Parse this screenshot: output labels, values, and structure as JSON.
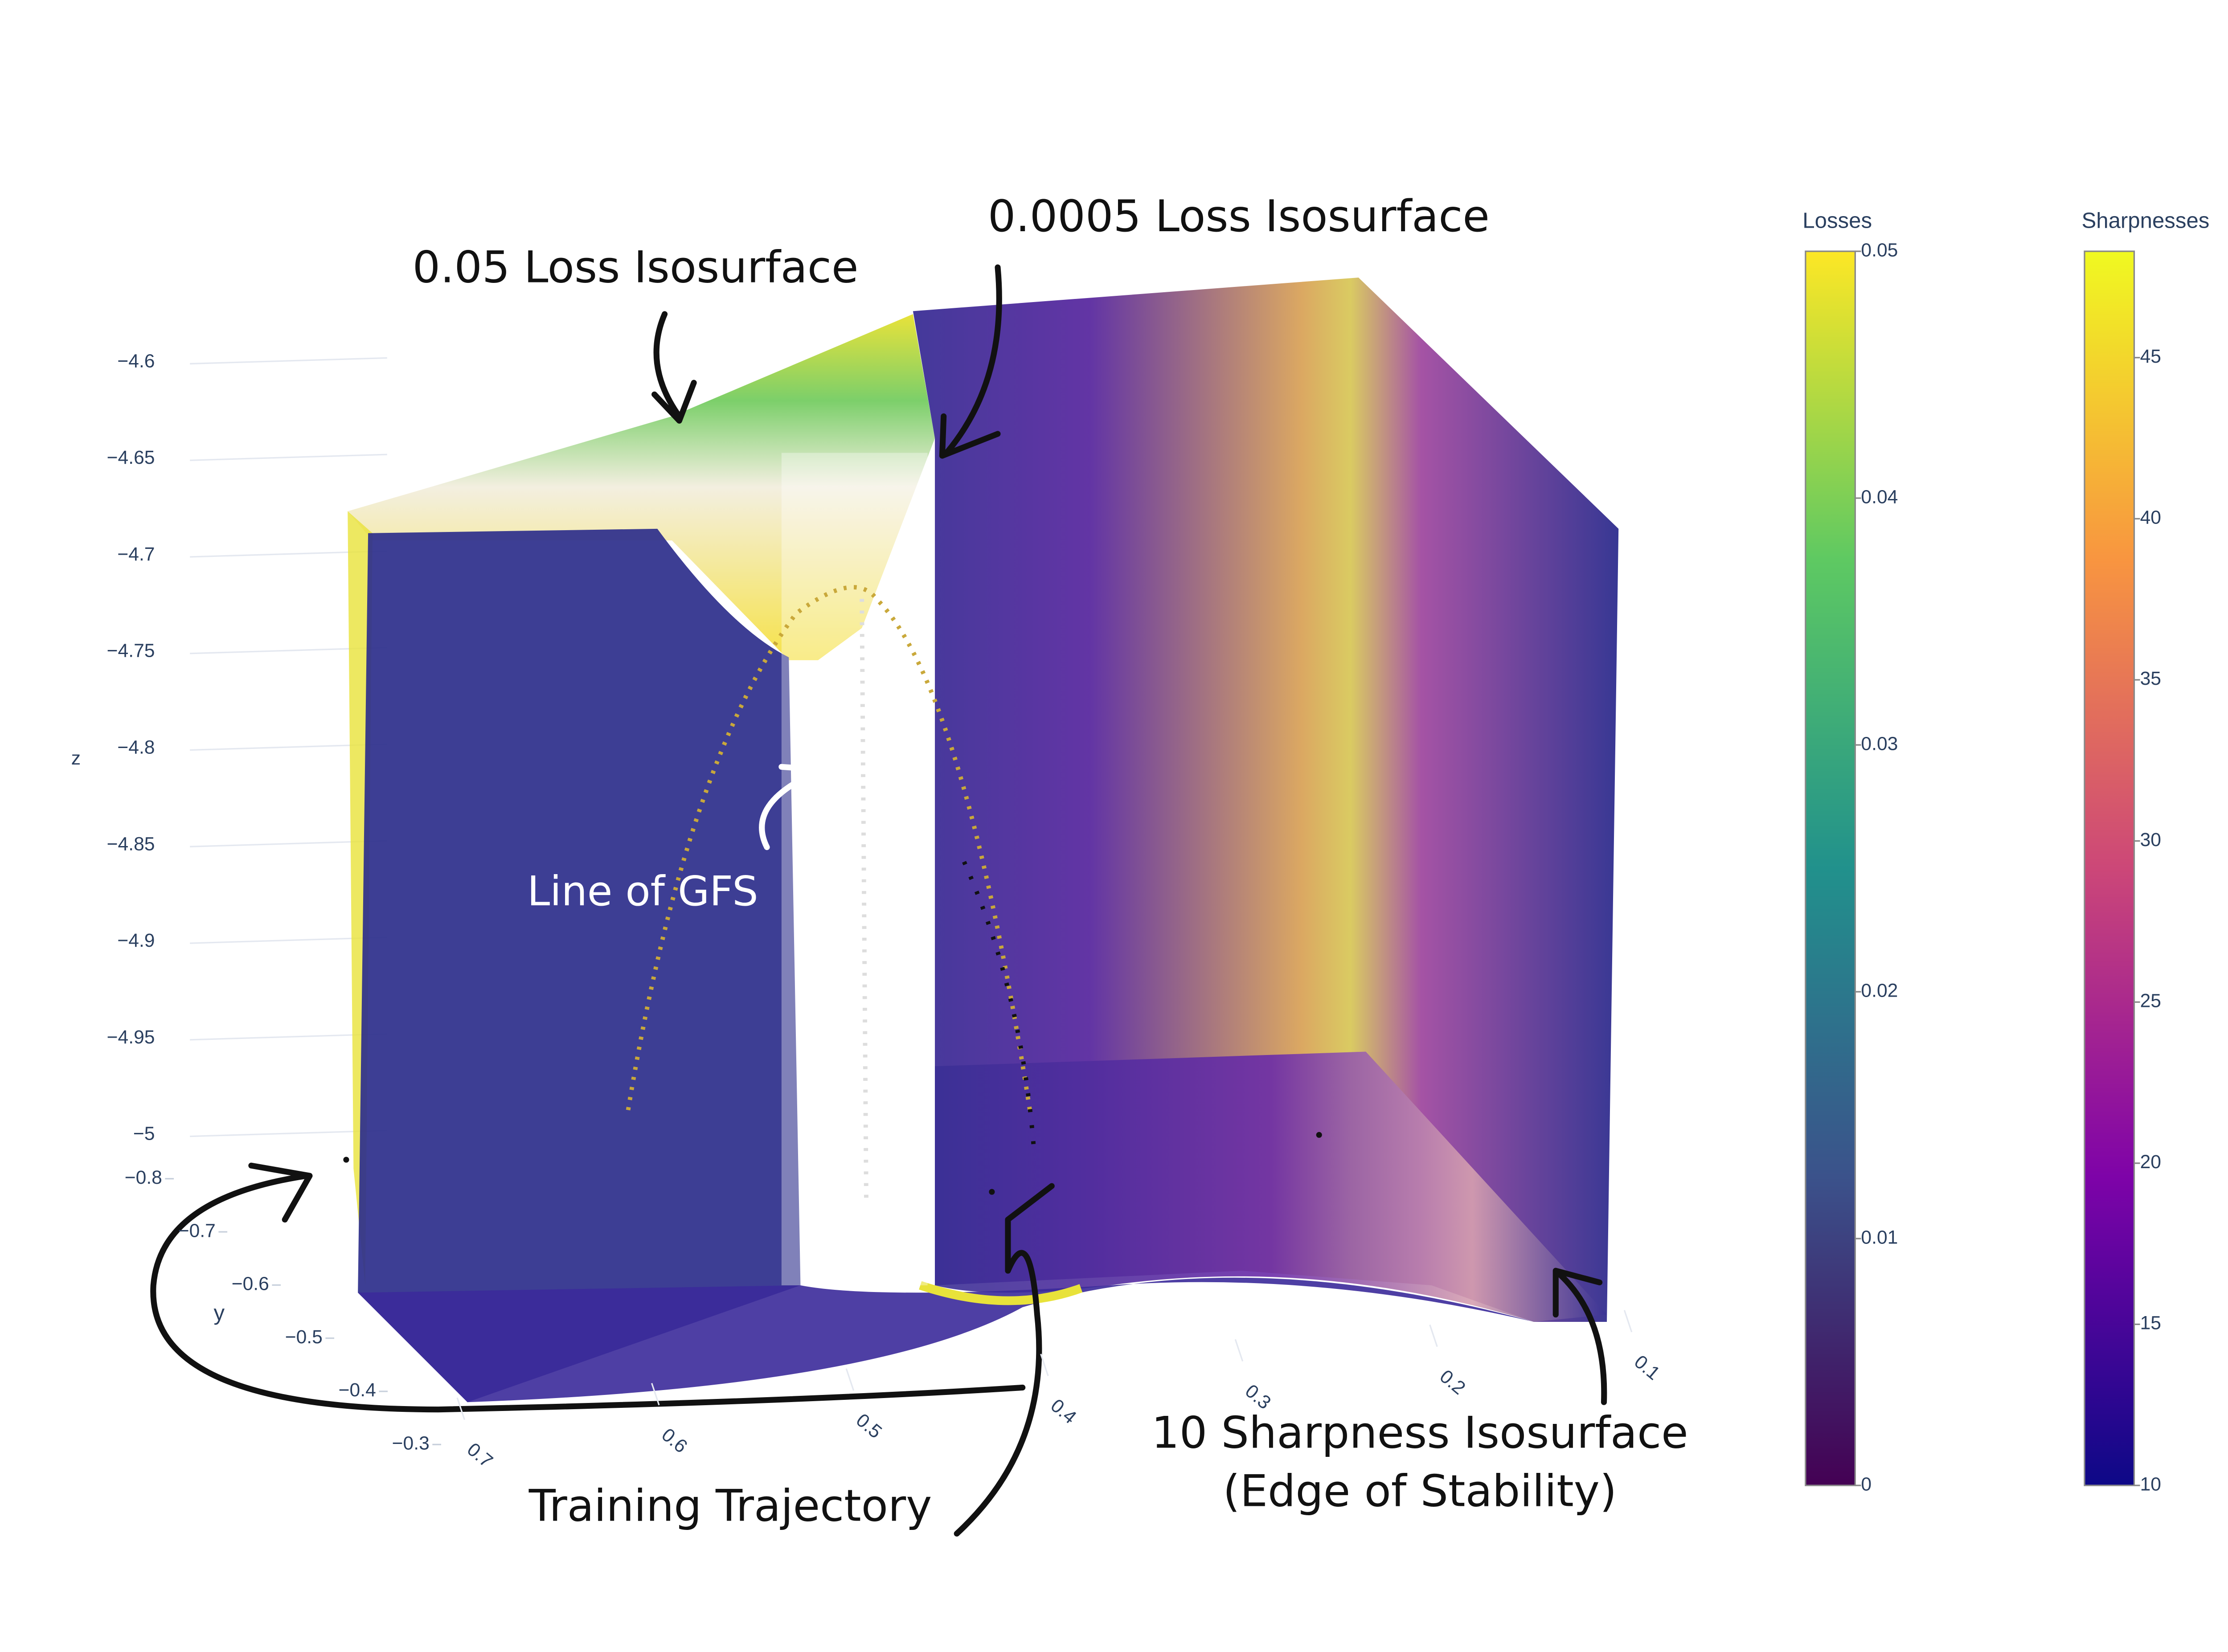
{
  "chart_data": {
    "type": "isosurface",
    "zaxis": {
      "title": "z",
      "lim": [
        -5,
        -4.6
      ],
      "ticks": [
        {
          "value": -4.6,
          "label": "−4.6"
        },
        {
          "value": -4.65,
          "label": "−4.65"
        },
        {
          "value": -4.7,
          "label": "−4.7"
        },
        {
          "value": -4.75,
          "label": "−4.75"
        },
        {
          "value": -4.8,
          "label": "−4.8"
        },
        {
          "value": -4.85,
          "label": "−4.85"
        },
        {
          "value": -4.9,
          "label": "−4.9"
        },
        {
          "value": -4.95,
          "label": "−4.95"
        },
        {
          "value": -5,
          "label": "−5"
        }
      ]
    },
    "yaxis": {
      "title": "y",
      "lim": [
        -0.8,
        -0.3
      ],
      "ticks": [
        {
          "value": -0.8,
          "label": "−0.8"
        },
        {
          "value": -0.7,
          "label": "−0.7"
        },
        {
          "value": -0.6,
          "label": "−0.6"
        },
        {
          "value": -0.5,
          "label": "−0.5"
        },
        {
          "value": -0.4,
          "label": "−0.4"
        },
        {
          "value": -0.3,
          "label": "−0.3"
        }
      ]
    },
    "xaxis": {
      "lim": [
        0.7,
        0.1
      ],
      "ticks": [
        0.7,
        0.6,
        0.5,
        0.4,
        0.3,
        0.2,
        0.1
      ]
    },
    "colorbars": [
      {
        "title": "Losses",
        "lim": [
          0,
          0.05
        ],
        "ticks": [
          0,
          0.01,
          0.02,
          0.03,
          0.04,
          0.05
        ],
        "colorscale": [
          "#440154",
          "#3b528b",
          "#21918c",
          "#5ec962",
          "#fde725"
        ]
      },
      {
        "title": "Sharpnesses",
        "lim": [
          10,
          48.3
        ],
        "ticks": [
          10,
          15,
          20,
          25,
          30,
          35,
          40,
          45
        ],
        "colorscale": [
          "#0d0887",
          "#7e03a8",
          "#cc4778",
          "#f89540",
          "#f0f921"
        ]
      }
    ],
    "annotations": [
      "0.05 Loss Isosurface",
      "0.0005 Loss Isosurface",
      "Line of GFS",
      "Training Trajectory",
      "10 Sharpness Isosurface",
      "(Edge of Stability)"
    ],
    "grid": true
  }
}
